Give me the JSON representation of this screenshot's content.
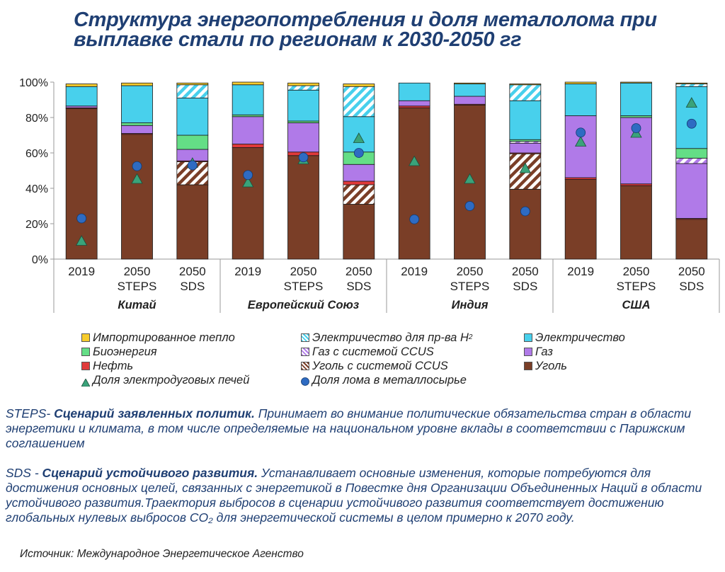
{
  "title": {
    "line1": "Структура энергопотребления и доля металолома при",
    "line2": "выплавке стали по регионам к 2030-2050 гг"
  },
  "chart_data": {
    "type": "bar",
    "stacked": true,
    "y_axis": {
      "min": 0,
      "max": 100,
      "ticks": [
        "0%",
        "20%",
        "40%",
        "60%",
        "80%",
        "100%"
      ]
    },
    "categories": [
      "2019",
      "2050 STEPS",
      "2050 SDS",
      "2019",
      "2050 STEPS",
      "2050 SDS",
      "2019",
      "2050 STEPS",
      "2050 SDS",
      "2019",
      "2050 STEPS",
      "2050 SDS"
    ],
    "category_labels": [
      [
        "2019"
      ],
      [
        "2050",
        "STEPS"
      ],
      [
        "2050",
        "SDS"
      ],
      [
        "2019"
      ],
      [
        "2050",
        "STEPS"
      ],
      [
        "2050",
        "SDS"
      ],
      [
        "2019"
      ],
      [
        "2050",
        "STEPS"
      ],
      [
        "2050",
        "SDS"
      ],
      [
        "2019"
      ],
      [
        "2050",
        "STEPS"
      ],
      [
        "2050",
        "SDS"
      ]
    ],
    "groups": [
      "Китай",
      "Европейский Союз",
      "Индия",
      "США"
    ],
    "series": [
      {
        "name": "Уголь",
        "key": "coal",
        "color": "#7a3e27",
        "pattern": "solid",
        "values": [
          85,
          70.5,
          42,
          63,
          58.5,
          31,
          85.5,
          87,
          39.5,
          45,
          41.5,
          22.5
        ]
      },
      {
        "name": "Уголь с системой CCUS",
        "key": "coal_ccus",
        "color": "#7a3e27",
        "pattern": "hatch",
        "values": [
          0,
          0,
          13,
          0,
          0,
          11,
          0,
          0,
          20,
          0,
          0,
          0
        ]
      },
      {
        "name": "Нефть",
        "key": "oil",
        "color": "#e03a3a",
        "pattern": "solid",
        "values": [
          0.5,
          0.5,
          0.5,
          2,
          2,
          2,
          1,
          0.5,
          0.5,
          1,
          1,
          0.5
        ]
      },
      {
        "name": "Газ",
        "key": "gas",
        "color": "#b07ae8",
        "pattern": "solid",
        "values": [
          1,
          4.5,
          6.5,
          15.5,
          16.5,
          9.5,
          3,
          4.5,
          5.5,
          35,
          37.5,
          31
        ]
      },
      {
        "name": "Газ с системой CCUS",
        "key": "gas_ccus",
        "color": "#b07ae8",
        "pattern": "hatch",
        "values": [
          0,
          0,
          0,
          0,
          0,
          0,
          0,
          0,
          1,
          0,
          0,
          3
        ]
      },
      {
        "name": "Биоэнергия",
        "key": "bio",
        "color": "#64de86",
        "pattern": "solid",
        "values": [
          0,
          1.5,
          8,
          1,
          1,
          7,
          0,
          0,
          1,
          0,
          1,
          5.5
        ]
      },
      {
        "name": "Электричество",
        "key": "elec",
        "color": "#48d0ec",
        "pattern": "solid",
        "values": [
          11,
          21,
          21,
          17,
          17.5,
          20,
          10,
          7,
          22,
          18,
          18.5,
          35
        ]
      },
      {
        "name": "Электричество для пр-ва H₂",
        "key": "elec_h2",
        "color": "#48d0ec",
        "pattern": "hatch",
        "values": [
          0,
          0,
          7.5,
          0,
          2.5,
          17,
          0,
          0,
          9,
          0,
          0,
          1.5
        ]
      },
      {
        "name": "Импортированное тепло",
        "key": "heat",
        "color": "#f7cc2c",
        "pattern": "solid",
        "values": [
          1.5,
          1.5,
          1,
          1.5,
          1.5,
          1.5,
          0,
          0.5,
          0.5,
          1,
          0.5,
          0.5
        ]
      }
    ],
    "markers": [
      {
        "name": "Доля электродуговых печей",
        "shape": "triangle",
        "color": "#3aa37a",
        "values": [
          10,
          45,
          54,
          43,
          56,
          68,
          55,
          45,
          51,
          66,
          71,
          88
        ]
      },
      {
        "name": "Доля лома в металлосырье",
        "shape": "circle",
        "color": "#2e6bc2",
        "values": [
          23,
          52.5,
          53,
          47.5,
          57.5,
          60,
          22.5,
          30,
          27,
          71.5,
          74,
          76.5
        ]
      }
    ]
  },
  "legend": {
    "items": [
      {
        "label": "Импортированное тепло",
        "kind": "box",
        "color": "#f7cc2c"
      },
      {
        "label": "Электричество для пр-ва H",
        "sub": "2",
        "kind": "hatch",
        "color": "#48d0ec"
      },
      {
        "label": "Электричество",
        "kind": "box",
        "color": "#48d0ec"
      },
      {
        "label": "Биоэнергия",
        "kind": "box",
        "color": "#64de86"
      },
      {
        "label": "Газ с системой CCUS",
        "kind": "hatch",
        "color": "#b07ae8"
      },
      {
        "label": "Газ",
        "kind": "box",
        "color": "#b07ae8"
      },
      {
        "label": "Нефть",
        "kind": "box",
        "color": "#e03a3a"
      },
      {
        "label": "Уголь с системой CCUS",
        "kind": "hatch",
        "color": "#7a3e27"
      },
      {
        "label": "Уголь",
        "kind": "box",
        "color": "#7a3e27"
      },
      {
        "label": "Доля электродуговых печей",
        "kind": "triangle",
        "color": "#3aa37a"
      },
      {
        "label": "Доля лома в металлосырье",
        "kind": "circle",
        "color": "#2e6bc2"
      }
    ]
  },
  "notes": {
    "steps_abbr": "STEPS- ",
    "steps_name": "Сценарий заявленных политик.",
    "steps_text": " Принимает во внимание политические обязательства стран в области энергетики и климата, в том числе определяемые на национальном уровне вклады в соответствии с Парижским соглашением",
    "sds_abbr": "SDS - ",
    "sds_name": "Сценарий устойчивого развития.",
    "sds_text": " Устанавливает основные изменения, которые потребуются для достижения основных целей, связанных с энергетикой в Повестке дня Организации Объединенных Наций в области устойчивого развития.Траектория выбросов в сценарии устойчивого развития соответствует достижению глобальных нулевых выбросов CO₂ для энергетической системы в целом примерно к 2070 году."
  },
  "source": "Источник: Международное Энергетическое Агенство"
}
